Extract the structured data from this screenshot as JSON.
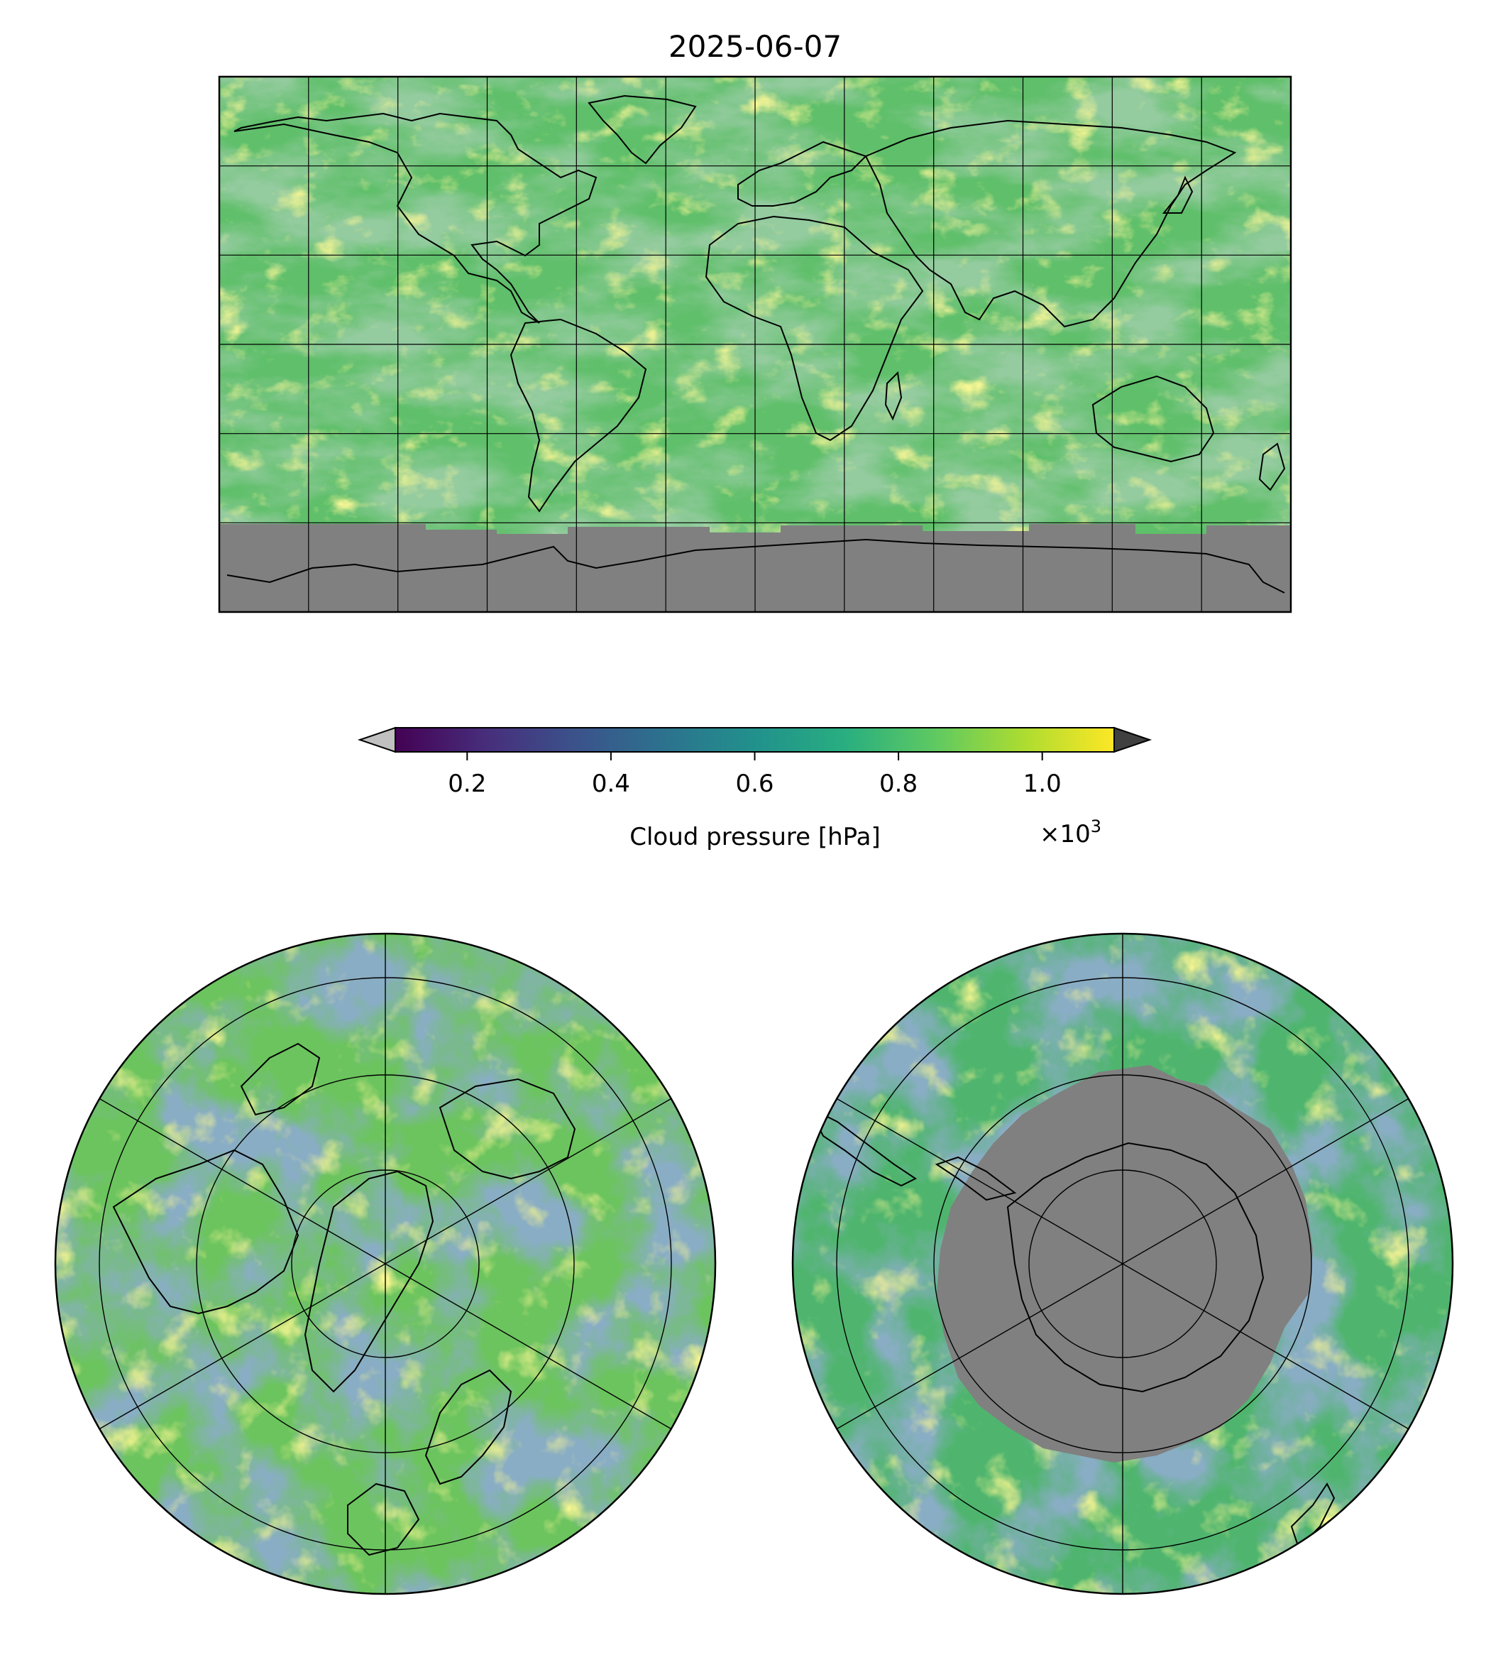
{
  "figure": {
    "title": "2025-06-07"
  },
  "global_map": {
    "projection": "PlateCarree",
    "lon_range": [
      -180,
      180
    ],
    "lat_range": [
      -90,
      90
    ],
    "gridline_step_lon": 30,
    "gridline_step_lat": 30,
    "missing_color": "#808080",
    "missing_below_lat": -60
  },
  "colorbar": {
    "label": "Cloud pressure [hPa]",
    "tick_labels": [
      "0.2",
      "0.4",
      "0.6",
      "0.8",
      "1.0"
    ],
    "tick_values": [
      0.2,
      0.4,
      0.6,
      0.8,
      1.0
    ],
    "range": [
      0.1,
      1.1
    ],
    "multiplier_prefix": "×10",
    "multiplier_exponent": "3",
    "colormap": "viridis",
    "extend_low_color": "#c0c0c0",
    "extend_high_color": "#404040"
  },
  "north_polar_map": {
    "projection": "NorthPolarStereo",
    "lat_circles": [
      60,
      75,
      85
    ],
    "meridian_step": 60
  },
  "south_polar_map": {
    "projection": "SouthPolarStereo",
    "lat_circles": [
      -60,
      -75,
      -85
    ],
    "meridian_step": 60,
    "missing_color": "#808080"
  },
  "colors": {
    "viridis": [
      "#440154",
      "#472d7b",
      "#3b528b",
      "#2c728e",
      "#21918c",
      "#28ae80",
      "#5ec962",
      "#addc30",
      "#fde725"
    ],
    "coastline": "#000000",
    "gridline": "#000000"
  }
}
